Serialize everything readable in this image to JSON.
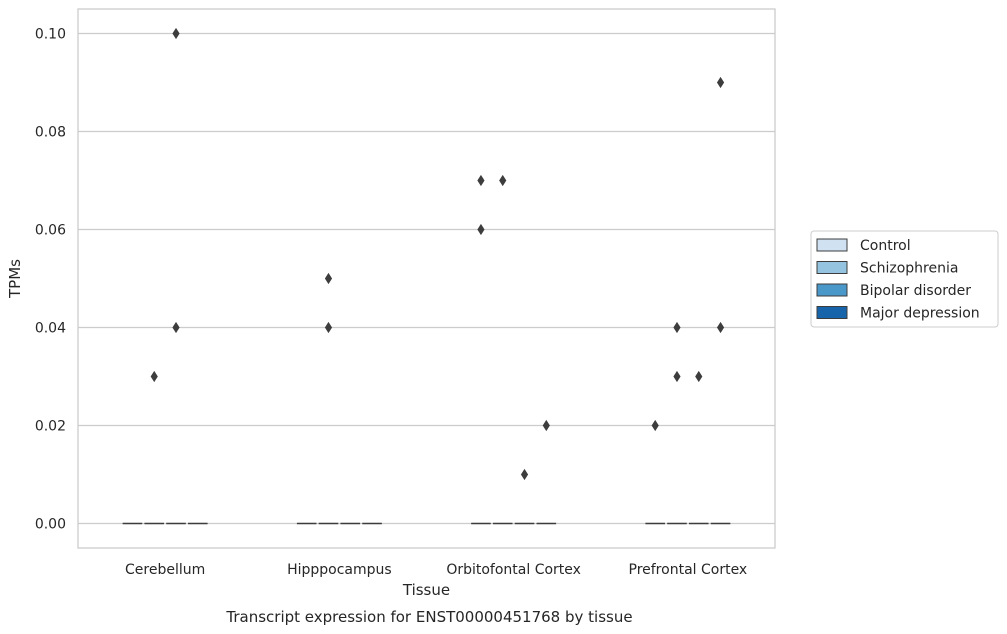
{
  "chart_data": {
    "type": "box",
    "title": "",
    "caption": "Transcript expression for ENST00000451768 by tissue",
    "xlabel": "Tissue",
    "ylabel": "TPMs",
    "ylim": [
      -0.005,
      0.105
    ],
    "yticks": [
      "0.00",
      "0.02",
      "0.04",
      "0.06",
      "0.08",
      "0.10"
    ],
    "grid": true,
    "legend_position": "right",
    "categories": [
      "Cerebellum",
      "Hipppocampus",
      "Orbitofontal Cortex",
      "Prefrontal Cortex"
    ],
    "series": [
      {
        "name": "Control",
        "color": "#d0e1f2",
        "medians": [
          0,
          0,
          0,
          0
        ],
        "outliers": [
          [],
          [],
          [
            0.07,
            0.06
          ],
          [
            0.02
          ]
        ]
      },
      {
        "name": "Schizophrenia",
        "color": "#94c4df",
        "medians": [
          0,
          0,
          0,
          0
        ],
        "outliers": [
          [
            0.03
          ],
          [
            0.05,
            0.04
          ],
          [
            0.07
          ],
          [
            0.04,
            0.03
          ]
        ]
      },
      {
        "name": "Bipolar disorder",
        "color": "#4a98c9",
        "medians": [
          0,
          0,
          0,
          0
        ],
        "outliers": [
          [
            0.1,
            0.04
          ],
          [],
          [
            0.01
          ],
          [
            0.03
          ]
        ]
      },
      {
        "name": "Major depression",
        "color": "#1764ab",
        "medians": [
          0,
          0,
          0,
          0
        ],
        "outliers": [
          [],
          [],
          [
            0.02
          ],
          [
            0.09,
            0.04
          ]
        ]
      }
    ]
  }
}
